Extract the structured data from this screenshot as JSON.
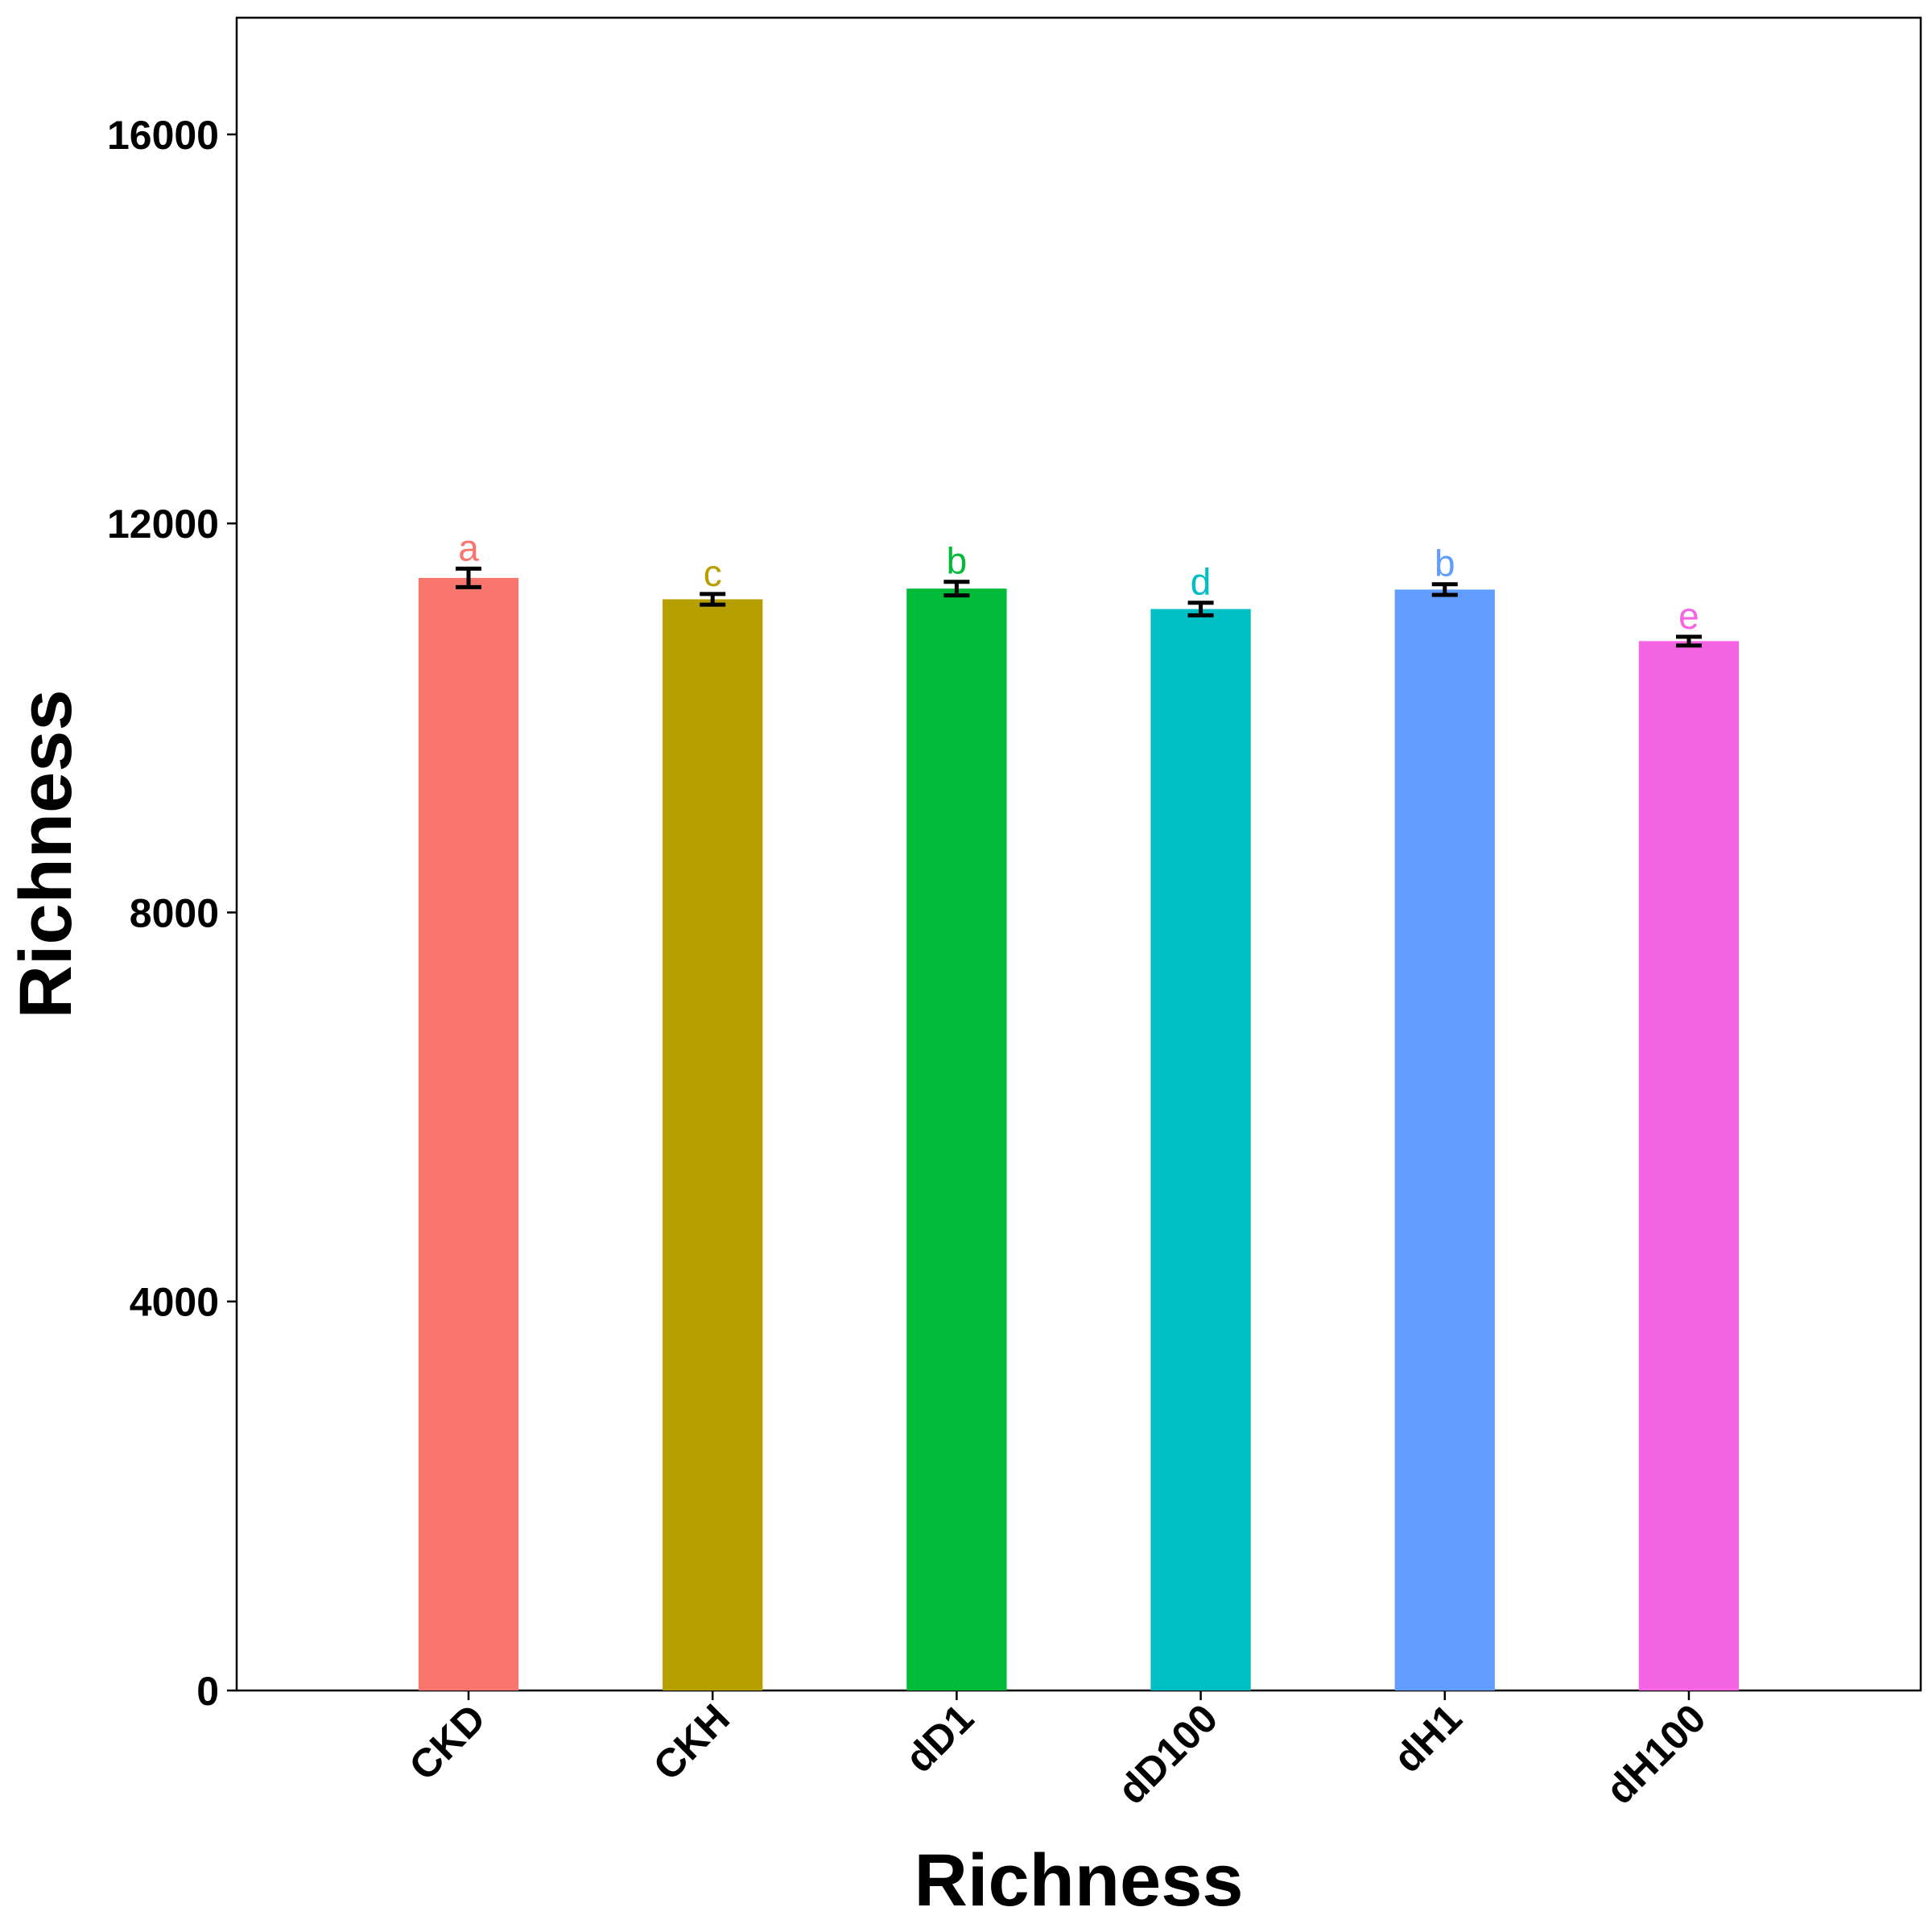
{
  "chart_data": {
    "type": "bar",
    "categories": [
      "CKD",
      "CKH",
      "dD1",
      "dD100",
      "dH1",
      "dH100"
    ],
    "values": [
      11440,
      11220,
      11330,
      11120,
      11320,
      10790
    ],
    "errors": [
      95,
      55,
      70,
      65,
      55,
      45
    ],
    "significance": [
      "a",
      "c",
      "b",
      "d",
      "b",
      "e"
    ],
    "colors": [
      "#F8766D",
      "#B79F00",
      "#00BA38",
      "#00BFC4",
      "#619CFF",
      "#F564E3"
    ],
    "xlabel": "Richness",
    "ylabel": "Richness",
    "ylim": [
      0,
      17200
    ],
    "yticks": [
      0,
      4000,
      8000,
      12000,
      16000
    ],
    "yticklabels": [
      "0",
      "4000",
      "8000",
      "12000",
      "16000"
    ],
    "grid": false,
    "legend": "none"
  }
}
